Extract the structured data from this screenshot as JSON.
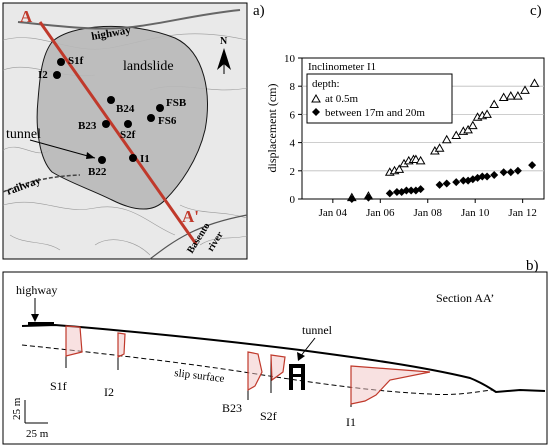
{
  "panel_labels": {
    "a": "a)",
    "b": "b)",
    "c": "c)"
  },
  "map": {
    "section_start": "A",
    "section_end": "A'",
    "highway": "highway",
    "landslide": "landslide",
    "tunnel": "tunnel",
    "railway": "railway",
    "river_line1": "Basento",
    "river_line2": "river",
    "north": "N",
    "points": [
      "S1f",
      "I2",
      "B24",
      "FSB",
      "B23",
      "S2f",
      "FS6",
      "B22",
      "I1"
    ]
  },
  "chart_data": {
    "type": "scatter",
    "title": "Inclinometer I1",
    "xlabel": "",
    "ylabel": "displacement (cm)",
    "ylim": [
      0,
      10
    ],
    "yticks": [
      0,
      2,
      4,
      6,
      8,
      10
    ],
    "xtick_labels": [
      "Jan 04",
      "Jan 06",
      "Jan 08",
      "Jan 10",
      "Jan 12"
    ],
    "xtick_values": [
      2004.0,
      2006.0,
      2008.0,
      2010.0,
      2012.0
    ],
    "xlim": [
      2002.7,
      2012.9
    ],
    "legend_title": "depth:",
    "legend_position": "top-left",
    "series": [
      {
        "name": "at 0.5m",
        "marker": "open-triangle",
        "x": [
          2004.8,
          2005.5,
          2006.4,
          2006.6,
          2006.8,
          2007.0,
          2007.2,
          2007.4,
          2007.5,
          2007.7,
          2008.3,
          2008.5,
          2008.8,
          2009.2,
          2009.5,
          2009.7,
          2009.9,
          2010.1,
          2010.3,
          2010.5,
          2010.8,
          2011.2,
          2011.5,
          2011.8,
          2012.1,
          2012.5
        ],
        "y": [
          0.1,
          0.2,
          1.9,
          2.0,
          2.1,
          2.5,
          2.7,
          2.8,
          2.8,
          2.7,
          3.4,
          3.6,
          4.2,
          4.5,
          4.8,
          4.9,
          5.2,
          5.8,
          5.9,
          6.0,
          6.7,
          7.2,
          7.3,
          7.3,
          7.7,
          8.2
        ]
      },
      {
        "name": "between 17m and 20m",
        "marker": "filled-diamond",
        "x": [
          2004.8,
          2005.5,
          2006.4,
          2006.7,
          2006.9,
          2007.1,
          2007.3,
          2007.5,
          2007.7,
          2008.5,
          2008.8,
          2009.2,
          2009.5,
          2009.7,
          2009.9,
          2010.1,
          2010.3,
          2010.5,
          2010.8,
          2011.2,
          2011.5,
          2011.8,
          2012.4
        ],
        "y": [
          0.0,
          0.1,
          0.4,
          0.5,
          0.5,
          0.6,
          0.6,
          0.6,
          0.7,
          1.0,
          1.1,
          1.2,
          1.3,
          1.3,
          1.4,
          1.5,
          1.6,
          1.6,
          1.7,
          1.9,
          1.9,
          2.0,
          2.4
        ]
      }
    ]
  },
  "section": {
    "title": "Section AA’",
    "highway": "highway",
    "tunnel": "tunnel",
    "slip_surface": "slip surface",
    "scale_v": "25 m",
    "scale_h": "25 m",
    "boreholes": [
      "S1f",
      "I2",
      "B23",
      "S2f",
      "I1"
    ]
  },
  "colors": {
    "section_line": "#c0392b",
    "profile": "#c0392b",
    "landslide_fill": "#b9b9b9"
  }
}
